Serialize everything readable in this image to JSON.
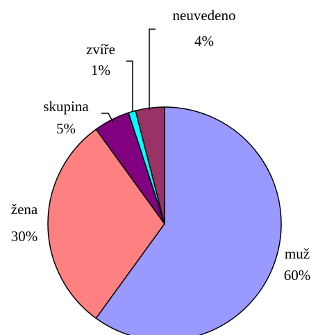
{
  "chart_data": {
    "type": "pie",
    "categories": [
      "muž",
      "žena",
      "skupina",
      "zvíře",
      "neuvedeno"
    ],
    "values": [
      60,
      30,
      5,
      1,
      4
    ],
    "value_labels": [
      "60%",
      "30%",
      "5%",
      "1%",
      "4%"
    ],
    "colors": [
      "#9999ff",
      "#ff8080",
      "#800080",
      "#00ffff",
      "#993366"
    ]
  }
}
